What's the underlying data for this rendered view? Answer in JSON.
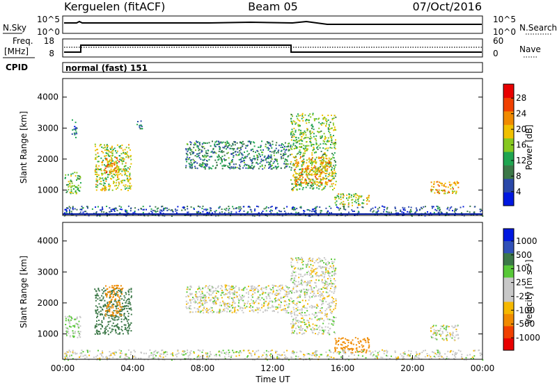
{
  "header": {
    "title": "Kerguelen (fitACF)",
    "beam": "Beam 05",
    "date": "07/Oct/2016"
  },
  "top_panels": {
    "nsky_label": "N.Sky",
    "nsearch_label": "N.Search",
    "nsky_ticks": [
      "10^5",
      "10^0"
    ],
    "nsearch_ticks": [
      "10^5",
      "10^0"
    ],
    "freq_label_1": "Freq.",
    "freq_label_2": "[MHz]",
    "freq_ticks": [
      "18",
      "8"
    ],
    "nave_label": "Nave",
    "nave_ticks": [
      "60",
      "0"
    ],
    "cpid_label": "CPID",
    "cpid_text": "normal (fast) 151"
  },
  "colors": {
    "power_scale": [
      "#0018e0",
      "#2a48a8",
      "#3c7848",
      "#1fa550",
      "#86c820",
      "#f0c000",
      "#f08a00",
      "#f04000",
      "#e80000"
    ],
    "velocity_scale": [
      "#e80000",
      "#f04000",
      "#f08a00",
      "#f5b800",
      "#c8c8c8",
      "#c8c8c8",
      "#58c838",
      "#3c7848",
      "#3050b8",
      "#0018e0"
    ]
  },
  "chart_data": [
    {
      "type": "heatmap",
      "name": "power",
      "ylabel": "Slant Range [km]",
      "ylim": [
        180,
        4600
      ],
      "xlim": [
        0,
        24
      ],
      "y_ticks": [
        "4000",
        "3000",
        "2000",
        "1000"
      ],
      "colorbar_label": "Power [dB]",
      "colorbar_ticks": [
        "28",
        "24",
        "20",
        "16",
        "12",
        "8",
        "4"
      ],
      "colorbar_range": [
        0,
        30
      ],
      "regions": [
        {
          "t0": 0.1,
          "t1": 1.0,
          "r0": 900,
          "r1": 1600,
          "value": 14
        },
        {
          "t0": 0.5,
          "t1": 0.8,
          "r0": 2600,
          "r1": 3300,
          "value": 8
        },
        {
          "t0": 1.8,
          "t1": 3.9,
          "r0": 1000,
          "r1": 2500,
          "value": 16
        },
        {
          "t0": 2.4,
          "t1": 3.2,
          "r0": 1500,
          "r1": 2100,
          "value": 22
        },
        {
          "t0": 4.2,
          "t1": 4.6,
          "r0": 3000,
          "r1": 3300,
          "value": 8
        },
        {
          "t0": 7.0,
          "t1": 13.0,
          "r0": 1700,
          "r1": 2600,
          "value": 9
        },
        {
          "t0": 13.0,
          "t1": 15.6,
          "r0": 1000,
          "r1": 3500,
          "value": 14
        },
        {
          "t0": 13.2,
          "t1": 15.4,
          "r0": 1200,
          "r1": 2100,
          "value": 20
        },
        {
          "t0": 15.5,
          "t1": 17.5,
          "r0": 500,
          "r1": 900,
          "value": 16
        },
        {
          "t0": 21.0,
          "t1": 22.6,
          "r0": 900,
          "r1": 1300,
          "value": 20
        },
        {
          "t0": 0.0,
          "t1": 24.0,
          "r0": 180,
          "r1": 500,
          "value": 6
        }
      ]
    },
    {
      "type": "heatmap",
      "name": "velocity",
      "xlabel": "Time UT",
      "ylabel": "Slant Range [km]",
      "ylim": [
        180,
        4600
      ],
      "xlim": [
        0,
        24
      ],
      "x_ticks": [
        "00:00",
        "04:00",
        "08:00",
        "12:00",
        "16:00",
        "20:00",
        "00:00"
      ],
      "y_ticks": [
        "4000",
        "3000",
        "2000",
        "1000"
      ],
      "colorbar_label": "Velocity [m s⁻¹]",
      "colorbar_ticks": [
        "1000",
        "500",
        "100",
        "25",
        "-25",
        "-100",
        "-500",
        "-1000"
      ],
      "regions": [
        {
          "t0": 0.1,
          "t1": 1.0,
          "r0": 900,
          "r1": 1600,
          "value": 25
        },
        {
          "t0": 1.8,
          "t1": 3.9,
          "r0": 1000,
          "r1": 2500,
          "value": 150
        },
        {
          "t0": 2.4,
          "t1": 3.4,
          "r0": 1600,
          "r1": 2600,
          "value": -150
        },
        {
          "t0": 7.0,
          "t1": 13.0,
          "r0": 1700,
          "r1": 2600,
          "value": 0
        },
        {
          "t0": 13.0,
          "t1": 15.6,
          "r0": 1000,
          "r1": 3500,
          "value": 0
        },
        {
          "t0": 15.5,
          "t1": 17.5,
          "r0": 400,
          "r1": 900,
          "value": -200
        },
        {
          "t0": 21.0,
          "t1": 22.6,
          "r0": 800,
          "r1": 1300,
          "value": 0
        },
        {
          "t0": 0.0,
          "t1": 24.0,
          "r0": 180,
          "r1": 500,
          "value": 0
        }
      ]
    }
  ]
}
